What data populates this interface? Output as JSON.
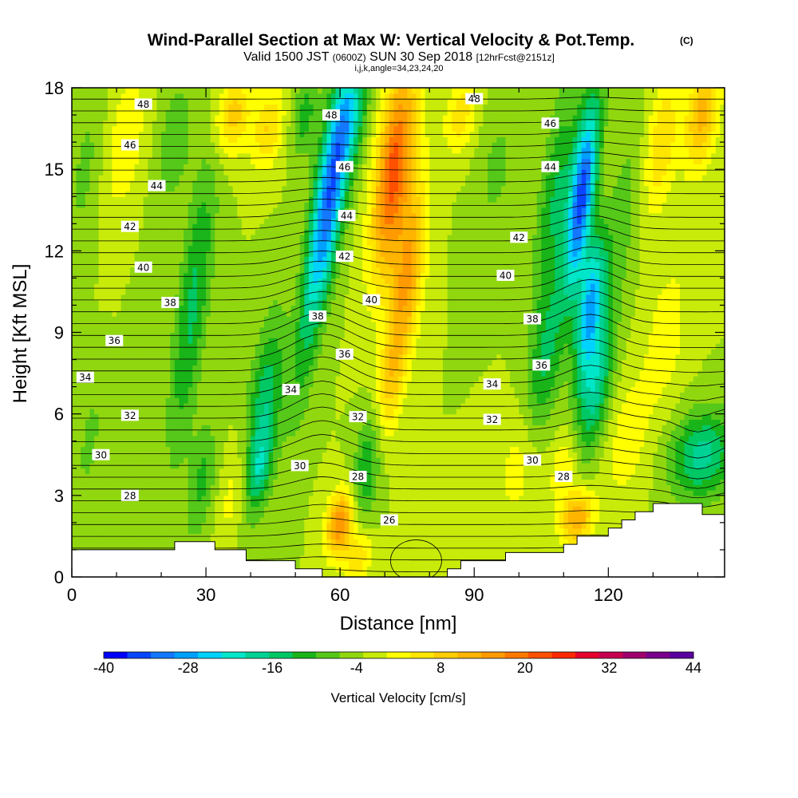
{
  "title": "Wind-Parallel Section at Max W: Vertical Velocity & Pot.Temp.",
  "title_mark": "(C)",
  "subtitle_valid": "Valid 1500 JST",
  "subtitle_z": "(0600Z)",
  "subtitle_date": "SUN 30 Sep 2018",
  "subtitle_fcst": "[12hrFcst@2151z]",
  "subtitle_ijk": "i,j,k,angle=34,23,24,20",
  "chart_data": {
    "type": "heatmap",
    "xlabel": "Distance [nm]",
    "ylabel": "Height [Kft MSL]",
    "xlim": [
      0,
      146
    ],
    "ylim": [
      0,
      18
    ],
    "xticks": [
      "0",
      "30",
      "60",
      "90",
      "120"
    ],
    "yticks": [
      "0",
      "3",
      "6",
      "9",
      "12",
      "15",
      "18"
    ],
    "colorbar": {
      "label": "Vertical Velocity [cm/s]",
      "tick_labels": [
        "-40",
        "-28",
        "-16",
        "-4",
        "8",
        "20",
        "32",
        "44"
      ],
      "range": [
        -40,
        44
      ],
      "step": 4,
      "colors": [
        "#0000ff",
        "#0a46ff",
        "#1478ff",
        "#00a0ff",
        "#00d2ff",
        "#00e6c8",
        "#00d296",
        "#00c864",
        "#19b419",
        "#55c819",
        "#91d70f",
        "#c8eb0a",
        "#ffff00",
        "#ffe600",
        "#ffcd00",
        "#ffb400",
        "#ff9b00",
        "#ff7800",
        "#ff5000",
        "#ff2800",
        "#e6002d",
        "#c80050",
        "#a0006e",
        "#78008c",
        "#5a00a0"
      ]
    },
    "theta_contour_labels": [
      "26",
      "28",
      "30",
      "32",
      "34",
      "36",
      "38",
      "40",
      "42",
      "44",
      "46",
      "48"
    ],
    "labels_placed": [
      {
        "text": "48",
        "x": 16,
        "y": 17.4
      },
      {
        "text": "46",
        "x": 13,
        "y": 15.9
      },
      {
        "text": "44",
        "x": 19,
        "y": 14.4
      },
      {
        "text": "42",
        "x": 13,
        "y": 12.9
      },
      {
        "text": "40",
        "x": 16,
        "y": 11.4
      },
      {
        "text": "38",
        "x": 22,
        "y": 10.1
      },
      {
        "text": "36",
        "x": 9.5,
        "y": 8.7
      },
      {
        "text": "34",
        "x": 3,
        "y": 7.35
      },
      {
        "text": "32",
        "x": 13,
        "y": 5.95
      },
      {
        "text": "30",
        "x": 6.5,
        "y": 4.5
      },
      {
        "text": "28",
        "x": 13,
        "y": 3.0
      },
      {
        "text": "48",
        "x": 58,
        "y": 17.0
      },
      {
        "text": "46",
        "x": 61,
        "y": 15.1
      },
      {
        "text": "44",
        "x": 61.5,
        "y": 13.3
      },
      {
        "text": "42",
        "x": 61,
        "y": 11.8
      },
      {
        "text": "40",
        "x": 67,
        "y": 10.2
      },
      {
        "text": "38",
        "x": 55,
        "y": 9.6
      },
      {
        "text": "36",
        "x": 61,
        "y": 8.2
      },
      {
        "text": "34",
        "x": 49,
        "y": 6.9
      },
      {
        "text": "32",
        "x": 64,
        "y": 5.9
      },
      {
        "text": "30",
        "x": 51,
        "y": 4.1
      },
      {
        "text": "28",
        "x": 64,
        "y": 3.7
      },
      {
        "text": "26",
        "x": 71,
        "y": 2.1
      },
      {
        "text": "48",
        "x": 90,
        "y": 17.6
      },
      {
        "text": "46",
        "x": 107,
        "y": 16.7
      },
      {
        "text": "44",
        "x": 107,
        "y": 15.1
      },
      {
        "text": "42",
        "x": 100,
        "y": 12.5
      },
      {
        "text": "40",
        "x": 97,
        "y": 11.1
      },
      {
        "text": "38",
        "x": 103,
        "y": 9.5
      },
      {
        "text": "36",
        "x": 105,
        "y": 7.8
      },
      {
        "text": "34",
        "x": 94,
        "y": 7.1
      },
      {
        "text": "32",
        "x": 94,
        "y": 5.8
      },
      {
        "text": "30",
        "x": 103,
        "y": 4.3
      },
      {
        "text": "28",
        "x": 110,
        "y": 3.7
      }
    ],
    "terrain": [
      [
        0,
        1.0
      ],
      [
        23,
        1.0
      ],
      [
        23,
        1.3
      ],
      [
        32,
        1.3
      ],
      [
        32,
        1.0
      ],
      [
        39,
        1.0
      ],
      [
        39,
        0.6
      ],
      [
        50,
        0.6
      ],
      [
        50,
        0.3
      ],
      [
        56,
        0.3
      ],
      [
        56,
        0
      ],
      [
        84,
        0
      ],
      [
        84,
        0.3
      ],
      [
        87,
        0.3
      ],
      [
        87,
        0.6
      ],
      [
        97,
        0.6
      ],
      [
        97,
        0.9
      ],
      [
        110,
        0.9
      ],
      [
        110,
        1.2
      ],
      [
        113,
        1.2
      ],
      [
        113,
        1.5
      ],
      [
        120,
        1.5
      ],
      [
        120,
        1.8
      ],
      [
        123,
        1.8
      ],
      [
        123,
        2.1
      ],
      [
        126,
        2.1
      ],
      [
        126,
        2.4
      ],
      [
        130,
        2.4
      ],
      [
        130,
        2.7
      ],
      [
        141,
        2.7
      ],
      [
        141,
        2.3
      ],
      [
        146,
        2.3
      ]
    ]
  }
}
